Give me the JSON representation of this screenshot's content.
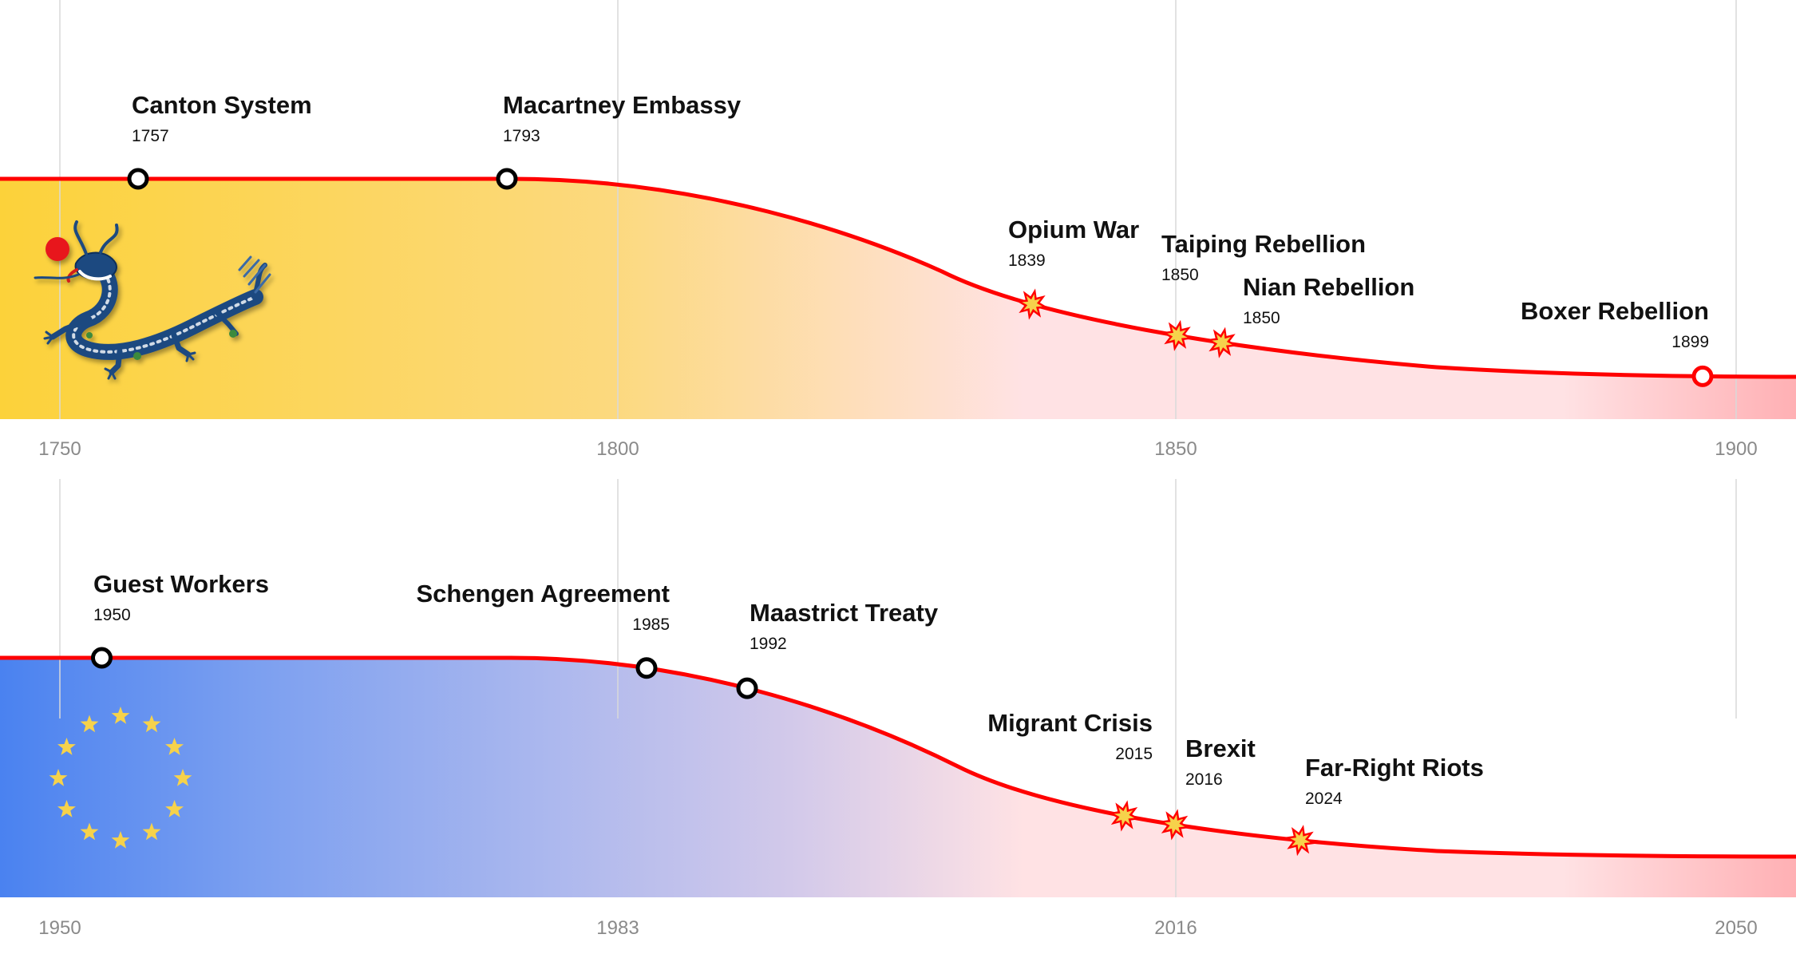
{
  "colors": {
    "decline_line": "#ff0000",
    "qing_gold": "#fcd23a",
    "eu_blue": "#4a82f0",
    "decline_pink": "#ffe2e4",
    "end_red": "#ffb0b4",
    "grid": "#d9d9d9",
    "tick_text": "#8a8a8a",
    "star": "#f6d24b"
  },
  "chart_data": [
    {
      "type": "area",
      "panel": "qing",
      "emblem": "qing-dragon-icon",
      "x_ticks": [
        "1750",
        "1800",
        "1850",
        "1900"
      ],
      "xlim": [
        1745,
        1905
      ],
      "grid": true,
      "events": [
        {
          "title": "Canton System",
          "year": "1757",
          "marker": "circle",
          "x": 1757
        },
        {
          "title": "Macartney Embassy",
          "year": "1793",
          "marker": "circle",
          "x": 1790
        },
        {
          "title": "Opium War",
          "year": "1839",
          "marker": "burst",
          "x": 1837
        },
        {
          "title": "Taiping Rebellion",
          "year": "1850",
          "marker": "burst",
          "x": 1850
        },
        {
          "title": "Nian Rebellion",
          "year": "1850",
          "marker": "burst",
          "x": 1854
        },
        {
          "title": "Boxer Rebellion",
          "year": "1899",
          "marker": "circle-red",
          "x": 1897
        }
      ]
    },
    {
      "type": "area",
      "panel": "europe",
      "emblem": "eu-stars-icon",
      "x_ticks": [
        "1950",
        "1983",
        "2016",
        "2050"
      ],
      "xlim": [
        1946.6,
        2053.3
      ],
      "grid": true,
      "events": [
        {
          "title": "Guest Workers",
          "year": "1950",
          "marker": "circle",
          "x": 1952.5
        },
        {
          "title": "Schengen Agreement",
          "year": "1985",
          "marker": "circle",
          "x": 1985
        },
        {
          "title": "Maastrict Treaty",
          "year": "1992",
          "marker": "circle",
          "x": 1991
        },
        {
          "title": "Migrant Crisis",
          "year": "2015",
          "marker": "burst",
          "x": 2013.5
        },
        {
          "title": "Brexit",
          "year": "2016",
          "marker": "burst",
          "x": 2016.5
        },
        {
          "title": "Far-Right Riots",
          "year": "2024",
          "marker": "burst",
          "x": 2024
        }
      ]
    }
  ]
}
